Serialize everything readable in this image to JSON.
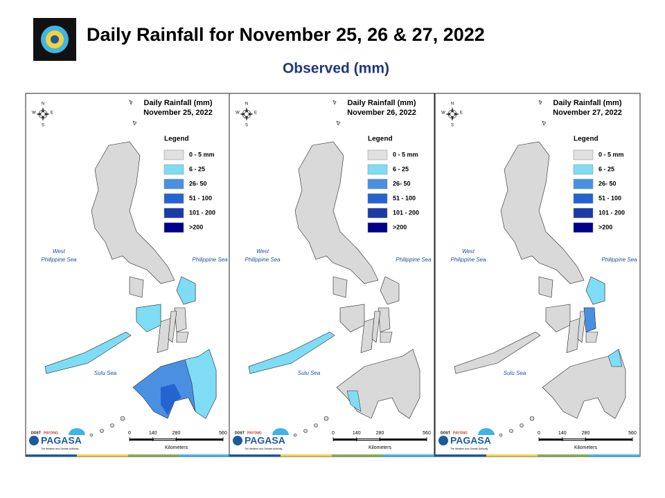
{
  "header": {
    "title": "Daily Rainfall for November 25, 26 & 27, 2022",
    "subtitle": "Observed (mm)"
  },
  "panels": [
    {
      "heading": "Daily Rainfall (mm)",
      "date": "November 25, 2022"
    },
    {
      "heading": "Daily Rainfall (mm)",
      "date": "November 26, 2022"
    },
    {
      "heading": "Daily Rainfall (mm)",
      "date": "November 27, 2022"
    }
  ],
  "legend": {
    "title": "Legend",
    "items": [
      {
        "label": "0 - 5 mm",
        "color": "#e0e0e0"
      },
      {
        "label": "6 - 25",
        "color": "#7fdcf5"
      },
      {
        "label": "26- 50",
        "color": "#4a90e2"
      },
      {
        "label": "51 - 100",
        "color": "#2563d0"
      },
      {
        "label": "101 - 200",
        "color": "#1a3aa8"
      },
      {
        "label": ">200",
        "color": "#00008b"
      }
    ]
  },
  "seas": {
    "west": [
      "West",
      "Philippine Sea"
    ],
    "east": "Philippine Sea",
    "sulu": "Sulu Sea"
  },
  "compass": {
    "n": "N",
    "e": "E",
    "s": "S",
    "w": "W"
  },
  "scale": {
    "ticks": [
      0,
      140,
      280,
      560
    ],
    "unit": "Kilometers"
  },
  "logo": {
    "dost": "DOST",
    "payong": "PAYONG",
    "name": "PAGASA",
    "tagline": "The Weather and Climate Authority"
  }
}
